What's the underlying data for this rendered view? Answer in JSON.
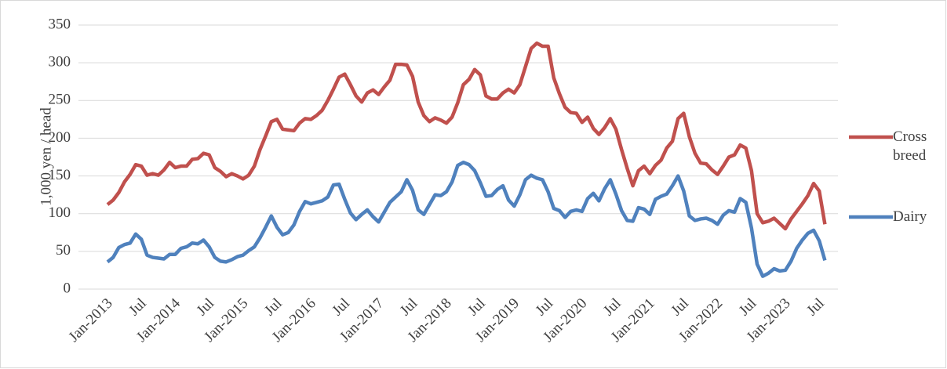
{
  "chart_data": {
    "type": "line",
    "y_label": "1,000 yen / head",
    "categories": [
      "Jan-2013",
      null,
      null,
      null,
      null,
      null,
      "Jul",
      null,
      null,
      null,
      null,
      null,
      "Jan-2014",
      null,
      null,
      null,
      null,
      null,
      "Jul",
      null,
      null,
      null,
      null,
      null,
      "Jan-2015",
      null,
      null,
      null,
      null,
      null,
      "Jul",
      null,
      null,
      null,
      null,
      null,
      "Jan-2016",
      null,
      null,
      null,
      null,
      null,
      "Jul",
      null,
      null,
      null,
      null,
      null,
      "Jan-2017",
      null,
      null,
      null,
      null,
      null,
      "Jul",
      null,
      null,
      null,
      null,
      null,
      "Jan-2018",
      null,
      null,
      null,
      null,
      null,
      "Jul",
      null,
      null,
      null,
      null,
      null,
      "Jan-2019",
      null,
      null,
      null,
      null,
      null,
      "Jul",
      null,
      null,
      null,
      null,
      null,
      "Jan-2020",
      null,
      null,
      null,
      null,
      null,
      "Jul",
      null,
      null,
      null,
      null,
      null,
      "Jan-2021",
      null,
      null,
      null,
      null,
      null,
      "Jul",
      null,
      null,
      null,
      null,
      null,
      "Jan-2022",
      null,
      null,
      null,
      null,
      null,
      "Jul",
      null,
      null,
      null,
      null,
      null,
      "Jan-2023",
      null,
      null,
      null,
      null,
      null,
      "Jul",
      null
    ],
    "series": [
      {
        "name": "Cross breed",
        "color": "#c0504d",
        "values": [
          112,
          118,
          128,
          142,
          152,
          165,
          163,
          151,
          153,
          151,
          158,
          168,
          161,
          163,
          163,
          172,
          173,
          180,
          178,
          161,
          156,
          149,
          153,
          150,
          146,
          151,
          163,
          185,
          203,
          222,
          225,
          212,
          211,
          210,
          220,
          226,
          225,
          230,
          237,
          250,
          265,
          281,
          285,
          271,
          256,
          248,
          260,
          264,
          258,
          268,
          277,
          298,
          298,
          297,
          282,
          248,
          230,
          222,
          227,
          224,
          220,
          228,
          247,
          271,
          278,
          291,
          284,
          256,
          252,
          252,
          260,
          265,
          260,
          271,
          295,
          319,
          326,
          322,
          322,
          280,
          259,
          241,
          234,
          233,
          221,
          228,
          213,
          205,
          214,
          226,
          212,
          185,
          160,
          137,
          157,
          163,
          153,
          164,
          171,
          187,
          196,
          226,
          233,
          202,
          180,
          167,
          166,
          158,
          152,
          163,
          175,
          178,
          191,
          187,
          157,
          100,
          88,
          90,
          94,
          87,
          80,
          93,
          103,
          113,
          124,
          140,
          130,
          86
        ]
      },
      {
        "name": "Dairy",
        "color": "#4f81bd",
        "values": [
          36,
          42,
          55,
          59,
          61,
          73,
          66,
          45,
          42,
          41,
          40,
          46,
          46,
          54,
          56,
          61,
          60,
          65,
          56,
          42,
          37,
          36,
          39,
          43,
          45,
          51,
          56,
          68,
          82,
          97,
          82,
          72,
          75,
          85,
          103,
          116,
          113,
          115,
          117,
          122,
          138,
          139,
          119,
          101,
          92,
          99,
          105,
          96,
          89,
          102,
          115,
          122,
          129,
          145,
          131,
          105,
          99,
          112,
          125,
          124,
          129,
          142,
          164,
          168,
          165,
          157,
          141,
          123,
          124,
          132,
          137,
          118,
          110,
          125,
          145,
          151,
          147,
          145,
          129,
          107,
          104,
          95,
          103,
          105,
          103,
          120,
          127,
          117,
          133,
          145,
          126,
          104,
          91,
          90,
          108,
          106,
          99,
          119,
          123,
          126,
          137,
          150,
          130,
          97,
          91,
          93,
          94,
          91,
          86,
          98,
          104,
          102,
          120,
          115,
          81,
          33,
          17,
          21,
          27,
          24,
          25,
          37,
          54,
          65,
          74,
          78,
          64,
          38
        ]
      }
    ],
    "ylim": [
      0,
      350
    ],
    "yticks": [
      0,
      50,
      100,
      150,
      200,
      250,
      300,
      350
    ],
    "grid": true,
    "legend": "right"
  }
}
